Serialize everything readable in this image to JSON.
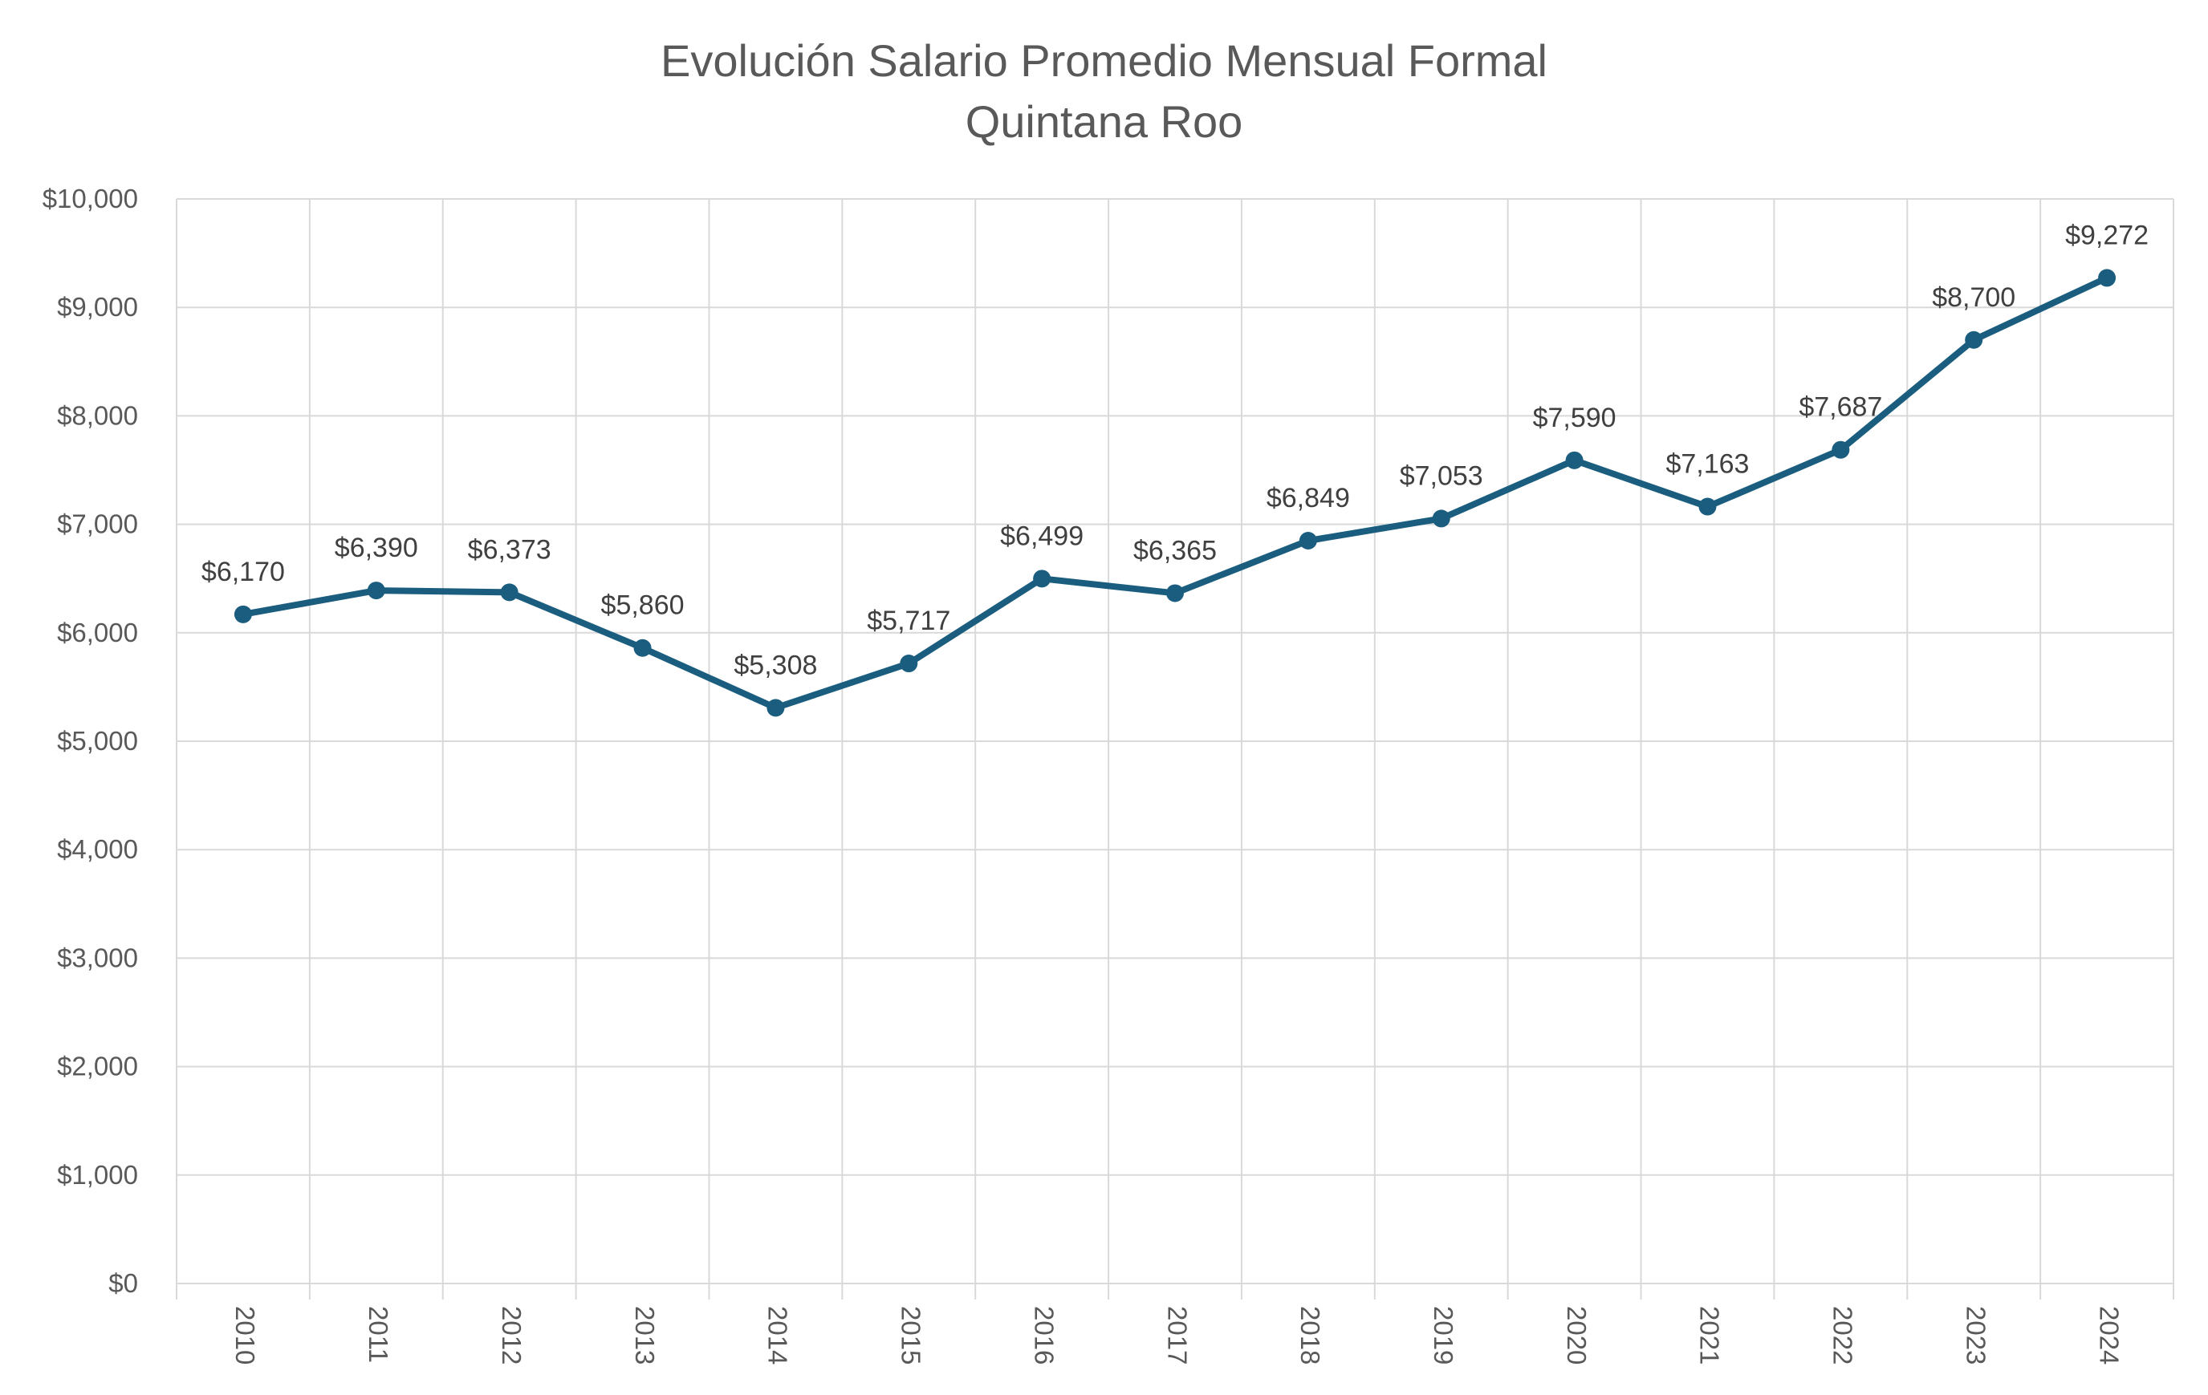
{
  "chart_data": {
    "type": "line",
    "title": "Evolución Salario Promedio Mensual Formal",
    "subtitle": "Quintana Roo",
    "xlabel": "",
    "ylabel": "",
    "categories": [
      "2010",
      "2011",
      "2012",
      "2013",
      "2014",
      "2015",
      "2016",
      "2017",
      "2018",
      "2019",
      "2020",
      "2021",
      "2022",
      "2023",
      "2024"
    ],
    "series": [
      {
        "values": [
          6170,
          6390,
          6373,
          5860,
          5308,
          5717,
          6499,
          6365,
          6849,
          7053,
          7590,
          7163,
          7687,
          8700,
          9272
        ]
      }
    ],
    "data_labels": [
      "$6,170",
      "$6,390",
      "$6,373",
      "$5,860",
      "$5,308",
      "$5,717",
      "$6,499",
      "$6,365",
      "$6,849",
      "$7,053",
      "$7,590",
      "$7,163",
      "$7,687",
      "$8,700",
      "$9,272"
    ],
    "ylim": [
      0,
      10000
    ],
    "y_ticks": [
      0,
      1000,
      2000,
      3000,
      4000,
      5000,
      6000,
      7000,
      8000,
      9000,
      10000
    ],
    "y_tick_labels": [
      "$0",
      "$1,000",
      "$2,000",
      "$3,000",
      "$4,000",
      "$5,000",
      "$6,000",
      "$7,000",
      "$8,000",
      "$9,000",
      "$10,000"
    ],
    "grid": true,
    "legend": "none",
    "colors": {
      "line": "#1a5d7e",
      "grid": "#d9d9d9",
      "text": "#595959",
      "label": "#404040"
    }
  }
}
